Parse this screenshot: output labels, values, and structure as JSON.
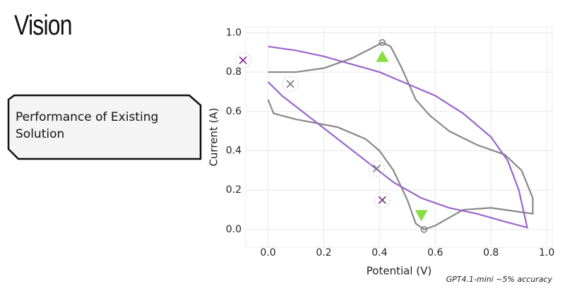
{
  "slide_title": "Vision",
  "callout": {
    "text": "Performance of Existing Solution"
  },
  "footnote": "GPT4.1-mini ~5% accuracy",
  "chart_data": {
    "type": "line",
    "xlabel": "Potential (V)",
    "ylabel": "Current (A)",
    "xlim": [
      -0.08,
      1.02
    ],
    "ylim": [
      -0.09,
      1.03
    ],
    "xticks": [
      {
        "value": 0,
        "label": "0.0"
      },
      0.2,
      0.4,
      0.6,
      0.8,
      {
        "value": 1,
        "label": "1.0"
      }
    ],
    "yticks": [
      {
        "value": 0,
        "label": "0.0"
      },
      0.2,
      0.4,
      0.6,
      0.8,
      {
        "value": 1,
        "label": "1.0"
      }
    ],
    "grid": true,
    "series": [
      {
        "color": "#888888",
        "x": [
          0,
          0.1,
          0.2,
          0.3,
          0.37,
          0.41,
          0.44,
          0.48,
          0.53,
          0.58,
          0.65,
          0.75,
          0.85,
          0.91,
          0.95,
          0.95,
          0.9,
          0.8,
          0.7,
          0.65,
          0.6,
          0.56,
          0.53,
          0.5,
          0.45,
          0.4,
          0.35,
          0.25,
          0.1,
          0.02,
          0
        ],
        "y": [
          0.8,
          0.8,
          0.82,
          0.87,
          0.92,
          0.95,
          0.93,
          0.82,
          0.66,
          0.58,
          0.5,
          0.43,
          0.38,
          0.3,
          0.16,
          0.08,
          0.09,
          0.11,
          0.1,
          0.06,
          0.02,
          0,
          0.03,
          0.15,
          0.3,
          0.4,
          0.46,
          0.52,
          0.56,
          0.59,
          0.66
        ]
      },
      {
        "color": "#9966cc",
        "x": [
          0,
          0.1,
          0.2,
          0.3,
          0.4,
          0.5,
          0.6,
          0.7,
          0.8,
          0.86,
          0.9,
          0.93,
          0.85,
          0.75,
          0.65,
          0.55,
          0.45,
          0.35,
          0.25,
          0.15,
          0.05,
          0
        ],
        "y": [
          0.93,
          0.91,
          0.88,
          0.84,
          0.8,
          0.74,
          0.68,
          0.59,
          0.47,
          0.35,
          0.2,
          0.01,
          0.04,
          0.08,
          0.11,
          0.16,
          0.24,
          0.35,
          0.46,
          0.57,
          0.68,
          0.75
        ]
      }
    ],
    "points": [
      {
        "x": 0.41,
        "y": 0.95,
        "marker": "circle",
        "color": "#777777"
      },
      {
        "x": 0.56,
        "y": 0,
        "marker": "circle",
        "color": "#777777"
      },
      {
        "x": 0.41,
        "y": 0.88,
        "marker": "triangle-up",
        "color": "#88dd44"
      },
      {
        "x": 0.55,
        "y": 0.07,
        "marker": "triangle-down",
        "color": "#88dd44"
      },
      {
        "x": 0.08,
        "y": 0.74,
        "marker": "x",
        "color": "#777777"
      },
      {
        "x": 0.39,
        "y": 0.31,
        "marker": "x",
        "color": "#777777"
      },
      {
        "x": -0.09,
        "y": 0.86,
        "marker": "x",
        "color": "#7a1f8a"
      },
      {
        "x": 0.41,
        "y": 0.15,
        "marker": "x",
        "color": "#7a1f8a"
      }
    ]
  }
}
